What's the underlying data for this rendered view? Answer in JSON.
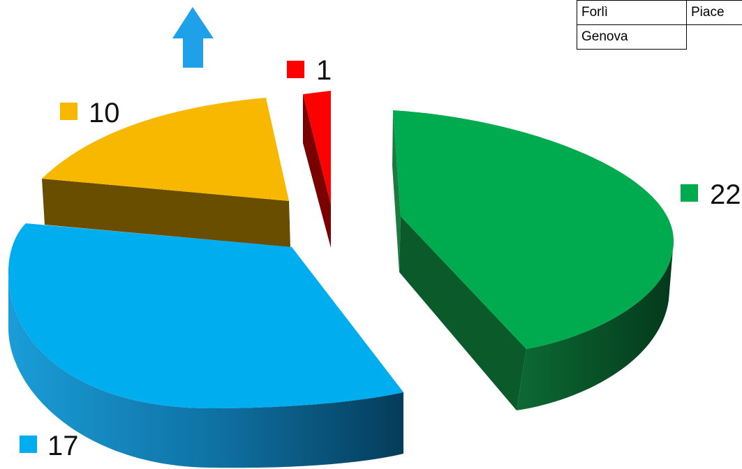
{
  "chart_data": {
    "type": "pie",
    "style": "3d-exploded",
    "slices": [
      {
        "value": 22,
        "color": "#00AA4E"
      },
      {
        "value": 17,
        "color": "#00ADEE"
      },
      {
        "value": 10,
        "color": "#F8B800"
      },
      {
        "value": 1,
        "color": "#FF0000"
      }
    ],
    "labels": [
      "22",
      "17",
      "10",
      "1"
    ],
    "legend": "none"
  },
  "cells": {
    "r1c1": "Forlì",
    "r1c2": "Piace",
    "r2c1": "Genova"
  },
  "arrow": {
    "icon": "up-arrow-icon",
    "color": "#1EA1E8"
  }
}
